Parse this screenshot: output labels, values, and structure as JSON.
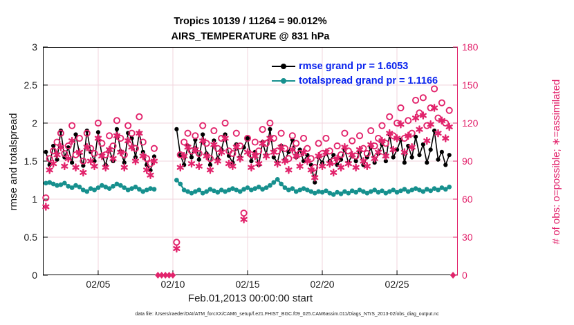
{
  "title": {
    "line1": "Tropics 10139 / 11264 = 90.012%",
    "line2": "AIRS_TEMPERATURE @ 831 hPa"
  },
  "colors": {
    "black": "#000000",
    "teal": "#17908e",
    "pink": "#e2246c",
    "legend_text": "#0b24ee",
    "grid": "#f0d4de",
    "axis_dark": "#1a1a1a"
  },
  "legend": {
    "items": [
      {
        "label": "rmse grand pr = 1.6053",
        "series": "rmse",
        "color": "#000000"
      },
      {
        "label": "totalspread grand pr = 1.1166",
        "series": "totalspread",
        "color": "#17908e"
      }
    ],
    "text_color": "#0b24ee"
  },
  "footer": {
    "text": "data file: /Users/raeder/DAI/ATM_forcXX/CAM6_setup/f.e21.FHIST_BGC.f09_025.CAM6assim.011/Diags_NTrS_2013-02/obs_diag_output.nc"
  },
  "axes": {
    "left": {
      "label": "rmse and totalspread",
      "tick_values": [
        0,
        0.5,
        1,
        1.5,
        2,
        2.5,
        3
      ],
      "tick_labels": [
        "0",
        "0.5",
        "1",
        "1.5",
        "2",
        "2.5",
        "3"
      ],
      "range": [
        0,
        3
      ],
      "color": "#1a1a1a"
    },
    "right": {
      "label": "# of obs: o=possible; ∗=assimilated",
      "tick_values": [
        0,
        30,
        60,
        90,
        120,
        150,
        180
      ],
      "tick_labels": [
        "0",
        "30",
        "60",
        "90",
        "120",
        "150",
        "180"
      ],
      "range": [
        0,
        180
      ],
      "color": "#e2246c"
    },
    "bottom": {
      "label": "Feb.01,2013 00:00:00 start",
      "tick_days": [
        4,
        9,
        14,
        19,
        24
      ],
      "tick_labels": [
        "02/05",
        "02/10",
        "02/15",
        "02/20",
        "02/25"
      ],
      "range_days": [
        0.3,
        28.07
      ]
    }
  },
  "chart_data": {
    "type": "line",
    "title": "Tropics 10139 / 11264 = 90.012%",
    "subtitle": "AIRS_TEMPERATURE @ 831 hPa",
    "xlabel": "Feb.01,2013 00:00:00 start",
    "ylabel_left": "rmse and totalspread",
    "ylabel_right": "# of obs: o=possible; ∗=assimilated",
    "ylim_left": [
      0,
      3
    ],
    "ylim_right": [
      0,
      180
    ],
    "xlim_days": [
      0.3,
      28.07
    ],
    "x_tick_days": [
      4,
      9,
      14,
      19,
      24
    ],
    "x_tick_labels": [
      "02/05",
      "02/10",
      "02/15",
      "02/20",
      "02/25"
    ],
    "grid": true,
    "legend_position": "top-center-inside",
    "x_days_since_feb1": [
      0.5,
      0.75,
      1,
      1.25,
      1.5,
      1.75,
      2,
      2.25,
      2.5,
      2.75,
      3,
      3.25,
      3.5,
      3.75,
      4,
      4.25,
      4.5,
      4.75,
      5,
      5.25,
      5.5,
      5.75,
      6,
      6.25,
      6.5,
      6.75,
      7,
      7.25,
      7.5,
      7.75,
      8,
      8.25,
      8.5,
      8.75,
      9,
      9.25,
      9.5,
      9.75,
      10,
      10.25,
      10.5,
      10.75,
      11,
      11.25,
      11.5,
      11.75,
      12,
      12.25,
      12.5,
      12.75,
      13,
      13.25,
      13.5,
      13.75,
      14,
      14.25,
      14.5,
      14.75,
      15,
      15.25,
      15.5,
      15.75,
      16,
      16.25,
      16.5,
      16.75,
      17,
      17.25,
      17.5,
      17.75,
      18,
      18.25,
      18.5,
      18.75,
      19,
      19.25,
      19.5,
      19.75,
      20,
      20.25,
      20.5,
      20.75,
      21,
      21.25,
      21.5,
      21.75,
      22,
      22.25,
      22.5,
      22.75,
      23,
      23.25,
      23.5,
      23.75,
      24,
      24.25,
      24.5,
      24.75,
      25,
      25.25,
      25.5,
      25.75,
      26,
      26.25,
      26.5,
      26.75,
      27,
      27.25,
      27.5,
      27.75
    ],
    "series": [
      {
        "name": "rmse",
        "axis": "left",
        "color": "#000000",
        "marker": "filled-dot",
        "grand_pr": 1.6053,
        "values": [
          1.62,
          1.45,
          1.7,
          1.52,
          1.9,
          1.55,
          1.68,
          1.48,
          1.85,
          1.6,
          1.44,
          1.9,
          1.62,
          1.5,
          1.88,
          1.58,
          1.45,
          1.65,
          1.5,
          1.92,
          1.63,
          1.48,
          1.87,
          1.8,
          1.55,
          1.87,
          1.62,
          1.45,
          1.38,
          1.56,
          null,
          null,
          null,
          null,
          null,
          1.92,
          1.58,
          1.45,
          1.7,
          1.55,
          1.78,
          1.52,
          1.85,
          1.6,
          1.45,
          1.77,
          1.53,
          1.65,
          1.85,
          1.57,
          1.48,
          1.72,
          1.55,
          1.68,
          1.8,
          1.5,
          1.62,
          1.45,
          1.75,
          1.58,
          1.92,
          1.55,
          1.48,
          1.7,
          1.52,
          1.62,
          1.78,
          1.55,
          1.65,
          1.5,
          1.58,
          1.45,
          1.22,
          1.55,
          1.48,
          1.62,
          1.5,
          1.58,
          1.45,
          1.52,
          1.65,
          1.48,
          1.58,
          1.5,
          1.62,
          1.45,
          1.55,
          1.68,
          1.48,
          1.6,
          1.72,
          1.5,
          1.85,
          1.55,
          1.65,
          1.78,
          1.48,
          1.7,
          1.55,
          1.82,
          1.58,
          1.72,
          1.48,
          1.65,
          1.9,
          1.52,
          1.62,
          1.45,
          1.58,
          null
        ]
      },
      {
        "name": "totalspread",
        "axis": "left",
        "color": "#17908e",
        "marker": "filled-dot",
        "grand_pr": 1.1166,
        "values": [
          1.21,
          1.22,
          1.2,
          1.18,
          1.19,
          1.21,
          1.17,
          1.15,
          1.18,
          1.16,
          1.12,
          1.1,
          1.14,
          1.12,
          1.15,
          1.18,
          1.16,
          1.14,
          1.17,
          1.2,
          1.18,
          1.15,
          1.12,
          1.14,
          1.16,
          1.13,
          1.1,
          1.12,
          1.14,
          1.13,
          null,
          null,
          null,
          null,
          null,
          1.25,
          1.2,
          1.12,
          1.1,
          1.08,
          1.1,
          1.12,
          1.08,
          1.1,
          1.13,
          1.11,
          1.09,
          1.12,
          1.1,
          1.12,
          1.14,
          1.12,
          1.1,
          1.13,
          1.15,
          1.12,
          1.14,
          1.16,
          1.13,
          1.15,
          1.18,
          1.22,
          1.26,
          1.2,
          1.15,
          1.12,
          1.14,
          1.1,
          1.12,
          1.14,
          1.12,
          1.1,
          1.08,
          1.1,
          1.09,
          1.11,
          1.08,
          1.06,
          1.09,
          1.07,
          1.1,
          1.08,
          1.11,
          1.09,
          1.12,
          1.1,
          1.08,
          1.1,
          1.12,
          1.09,
          1.11,
          1.08,
          1.1,
          1.12,
          1.09,
          1.11,
          1.13,
          1.1,
          1.12,
          1.14,
          1.12,
          1.1,
          1.13,
          1.11,
          1.14,
          1.12,
          1.15,
          1.13,
          1.16,
          null
        ]
      },
      {
        "name": "obs-possible",
        "axis": "right",
        "color": "#e2246c",
        "marker": "open-circle",
        "values": [
          61,
          92,
          98,
          105,
          112,
          96,
          102,
          118,
          95,
          108,
          90,
          112,
          100,
          96,
          120,
          104,
          95,
          110,
          102,
          122,
          108,
          95,
          118,
          112,
          100,
          125,
          105,
          92,
          88,
          100,
          0,
          0,
          0,
          0,
          0,
          26,
          95,
          105,
          112,
          98,
          110,
          96,
          118,
          104,
          92,
          114,
          100,
          108,
          120,
          98,
          96,
          112,
          102,
          49,
          108,
          95,
          105,
          98,
          115,
          104,
          120,
          108,
          98,
          112,
          100,
          92,
          110,
          104,
          96,
          108,
          100,
          92,
          85,
          104,
          96,
          108,
          98,
          90,
          102,
          95,
          112,
          98,
          106,
          94,
          110,
          100,
          96,
          114,
          102,
          108,
          118,
          104,
          125,
          110,
          120,
          132,
          108,
          122,
          112,
          138,
          128,
          140,
          118,
          132,
          147,
          124,
          136,
          120,
          130,
          0
        ]
      },
      {
        "name": "obs-assimilated",
        "axis": "right",
        "color": "#e2246c",
        "marker": "asterisk",
        "values": [
          54,
          83,
          88,
          95,
          101,
          86,
          92,
          106,
          85,
          97,
          81,
          101,
          90,
          86,
          108,
          94,
          85,
          99,
          92,
          110,
          97,
          85,
          106,
          101,
          90,
          112,
          94,
          83,
          79,
          90,
          0,
          0,
          0,
          0,
          0,
          21,
          85,
          94,
          101,
          88,
          99,
          86,
          106,
          94,
          83,
          103,
          90,
          97,
          108,
          88,
          86,
          101,
          92,
          44,
          97,
          85,
          94,
          88,
          104,
          94,
          108,
          97,
          88,
          101,
          90,
          83,
          99,
          94,
          86,
          97,
          90,
          83,
          77,
          94,
          86,
          97,
          88,
          81,
          92,
          85,
          101,
          88,
          95,
          85,
          99,
          90,
          86,
          103,
          92,
          97,
          106,
          94,
          112,
          99,
          108,
          119,
          97,
          110,
          101,
          124,
          115,
          126,
          106,
          119,
          132,
          112,
          122,
          108,
          117,
          0
        ]
      }
    ]
  }
}
